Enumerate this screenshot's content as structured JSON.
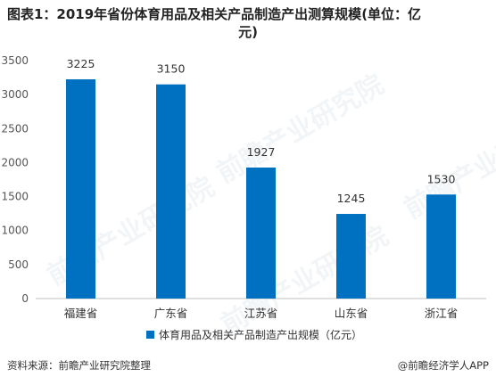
{
  "title_line1": "图表1：2019年省份体育用品及相关产品制造产出测算规模(单位：亿",
  "title_line2": "元)",
  "source_text": "资料来源：前瞻产业研究院整理",
  "credit_text": "@前瞻经济学人APP",
  "watermark_text": "前瞻产业研究院",
  "chart_data": {
    "type": "bar",
    "categories": [
      "福建省",
      "广东省",
      "江苏省",
      "山东省",
      "浙江省"
    ],
    "series": [
      {
        "name": "体育用品及相关产品制造产出规模（亿元）",
        "values": [
          3225,
          3150,
          1927,
          1245,
          1530
        ],
        "color": "#0070c0"
      }
    ],
    "ylim": [
      0,
      3500
    ],
    "yticks": [
      0,
      500,
      1000,
      1500,
      2000,
      2500,
      3000,
      3500
    ],
    "grid": false,
    "legend_position": "bottom"
  }
}
